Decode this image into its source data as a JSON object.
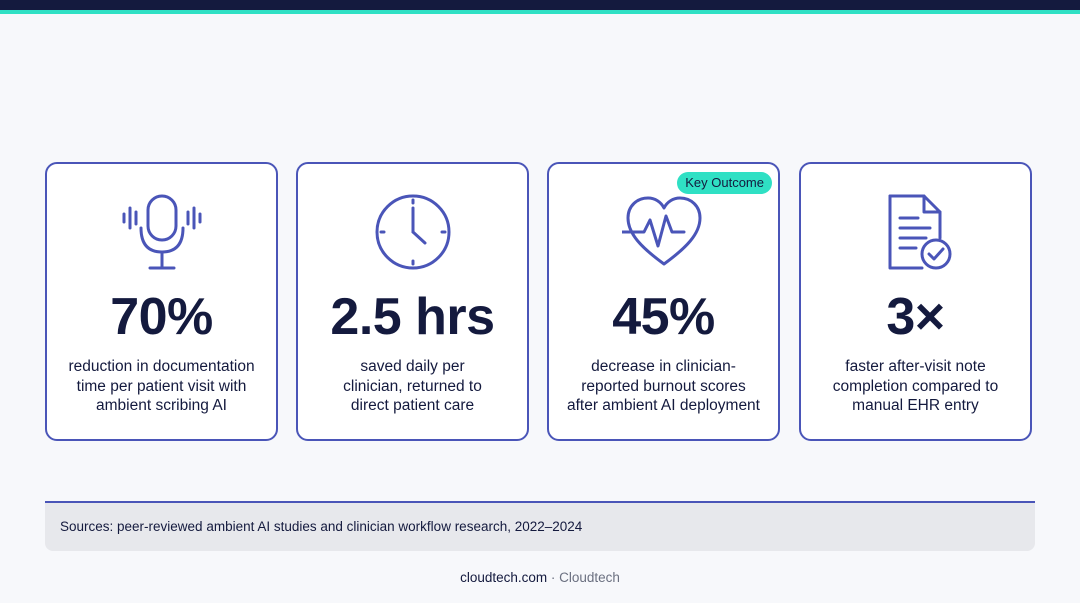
{
  "colors": {
    "primary": "#4a55b8",
    "navy": "#141a3e",
    "accent": "#2fe0c4",
    "background": "#f7f8fb",
    "panel": "#e7e8ec"
  },
  "cards": [
    {
      "icon": "microphone-icon",
      "value": "70%",
      "desc_lines": [
        "reduction in documentation",
        "time per patient visit with",
        "ambient scribing AI"
      ]
    },
    {
      "icon": "clock-icon",
      "value": "2.5 hrs",
      "desc_lines": [
        "saved daily per",
        "clinician, returned to",
        "direct patient care"
      ]
    },
    {
      "icon": "heart-pulse-icon",
      "badge": "Key Outcome",
      "value": "45%",
      "desc_lines": [
        "decrease in clinician-",
        "reported burnout scores",
        "after ambient AI deployment"
      ]
    },
    {
      "icon": "document-check-icon",
      "value": "3×",
      "desc_lines": [
        "faster after-visit note",
        "completion compared to",
        "manual EHR entry"
      ]
    }
  ],
  "sources": "Sources: peer-reviewed ambient AI studies and clinician workflow research, 2022–2024",
  "footer": {
    "domain": "cloudtech.com",
    "separator": " · ",
    "brand": "Cloudtech"
  }
}
